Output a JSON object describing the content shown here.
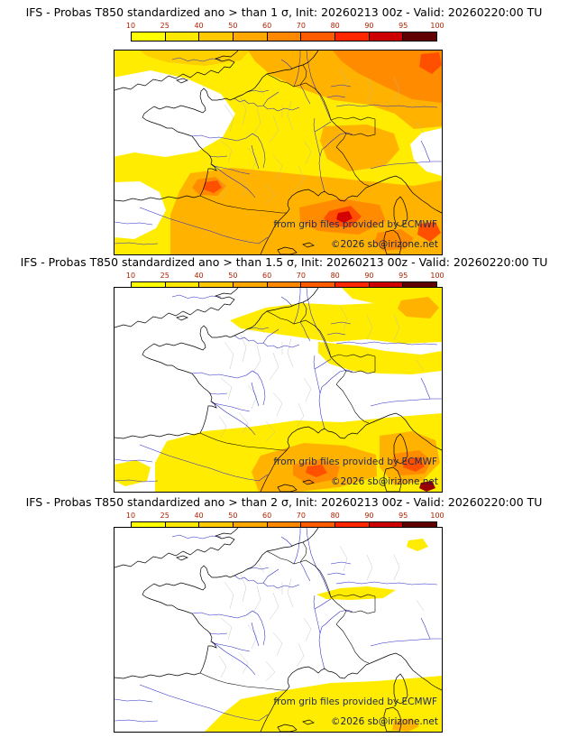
{
  "page": {
    "background": "#ffffff"
  },
  "colorbar": {
    "ticks": [
      "10",
      "25",
      "40",
      "50",
      "60",
      "70",
      "80",
      "90",
      "95",
      "100"
    ],
    "colors": [
      "#ffff00",
      "#ffe800",
      "#ffc800",
      "#ffa800",
      "#ff8800",
      "#ff5c00",
      "#ff2600",
      "#cc0000",
      "#600000"
    ],
    "tick_color": "#b22000"
  },
  "map_colors": {
    "sea": "#ffffff",
    "coastline": "#000000",
    "country_border": "#000000",
    "river": "#2a2ac8",
    "admin_border": "#b8b8b8",
    "prob_yellow": "#ffec00",
    "prob_orange": "#ffb300",
    "prob_dark_orange": "#ff8c00",
    "prob_red": "#ff5000",
    "prob_dark_red": "#d40000"
  },
  "panels": [
    {
      "title": "IFS - Probas T850  standardized ano > than 1 σ, Init: 20260213 00z - Valid: 20260220:00 TU",
      "model": "IFS",
      "variable": "T850",
      "threshold_sigma": "1",
      "init": "20260213 00z",
      "valid": "20260220:00 TU",
      "watermark": {
        "line1": "from grib files provided by ECMWF",
        "line2": "©2026 sb@irizone.net"
      }
    },
    {
      "title": "IFS - Probas T850  standardized ano > than 1.5 σ, Init: 20260213 00z - Valid: 20260220:00 TU",
      "model": "IFS",
      "variable": "T850",
      "threshold_sigma": "1.5",
      "init": "20260213 00z",
      "valid": "20260220:00 TU",
      "watermark": {
        "line1": "from grib files provided by ECMWF",
        "line2": "©2026 sb@irizone.net"
      }
    },
    {
      "title": "IFS - Probas T850  standardized ano > than 2 σ, Init: 20260213 00z - Valid: 20260220:00 TU",
      "model": "IFS",
      "variable": "T850",
      "threshold_sigma": "2",
      "init": "20260213 00z",
      "valid": "20260220:00 TU",
      "watermark": {
        "line1": "from grib files provided by ECMWF",
        "line2": "©2026 sb@irizone.net"
      }
    }
  ]
}
